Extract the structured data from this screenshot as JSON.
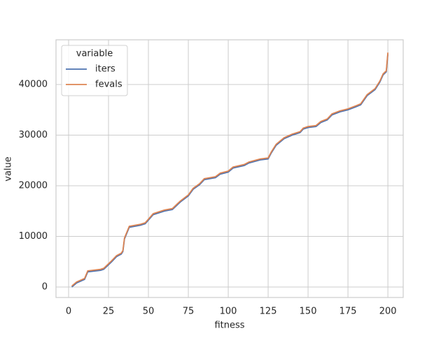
{
  "chart_data": {
    "type": "line",
    "x_label": "fitness",
    "y_label": "value",
    "x": [
      2,
      5,
      10,
      12,
      20,
      22,
      27,
      30,
      33,
      34,
      35,
      38,
      45,
      48,
      53,
      60,
      65,
      70,
      75,
      78,
      82,
      85,
      92,
      95,
      100,
      103,
      110,
      113,
      120,
      125,
      127,
      130,
      135,
      140,
      145,
      147,
      150,
      155,
      158,
      162,
      165,
      170,
      175,
      180,
      183,
      187,
      192,
      195,
      197,
      199,
      200
    ],
    "series": [
      {
        "name": "iters",
        "color": "#4c72b0",
        "values": [
          0,
          800,
          1500,
          3000,
          3300,
          3500,
          5000,
          6000,
          6500,
          7000,
          9500,
          11800,
          12200,
          12500,
          14300,
          15000,
          15300,
          16800,
          18000,
          19300,
          20200,
          21200,
          21600,
          22300,
          22700,
          23500,
          24000,
          24500,
          25100,
          25300,
          26500,
          28000,
          29300,
          30000,
          30500,
          31200,
          31500,
          31700,
          32500,
          33000,
          34000,
          34600,
          35000,
          35600,
          36000,
          37800,
          39000,
          40500,
          41900,
          42500,
          46000
        ]
      },
      {
        "name": "fevals",
        "color": "#dd8452",
        "values": [
          200,
          1000,
          1700,
          3200,
          3500,
          3700,
          5200,
          6200,
          6700,
          7200,
          9700,
          12000,
          12400,
          12700,
          14500,
          15200,
          15500,
          17000,
          18200,
          19500,
          20400,
          21400,
          21800,
          22500,
          22900,
          23700,
          24200,
          24700,
          25300,
          25500,
          26700,
          28200,
          29500,
          30200,
          30700,
          31400,
          31700,
          31900,
          32700,
          33200,
          34200,
          34800,
          35200,
          35800,
          36200,
          38000,
          39200,
          40700,
          42100,
          42700,
          46300
        ]
      }
    ],
    "legend_title": "variable",
    "legend_loc": "upper left",
    "xlim": [
      -7.9,
      209.6
    ],
    "xticks": [
      0,
      25,
      50,
      75,
      100,
      125,
      150,
      175,
      200
    ],
    "ylim": [
      -2070,
      48830
    ],
    "yticks": [
      0,
      10000,
      20000,
      30000,
      40000
    ],
    "grid": true
  }
}
